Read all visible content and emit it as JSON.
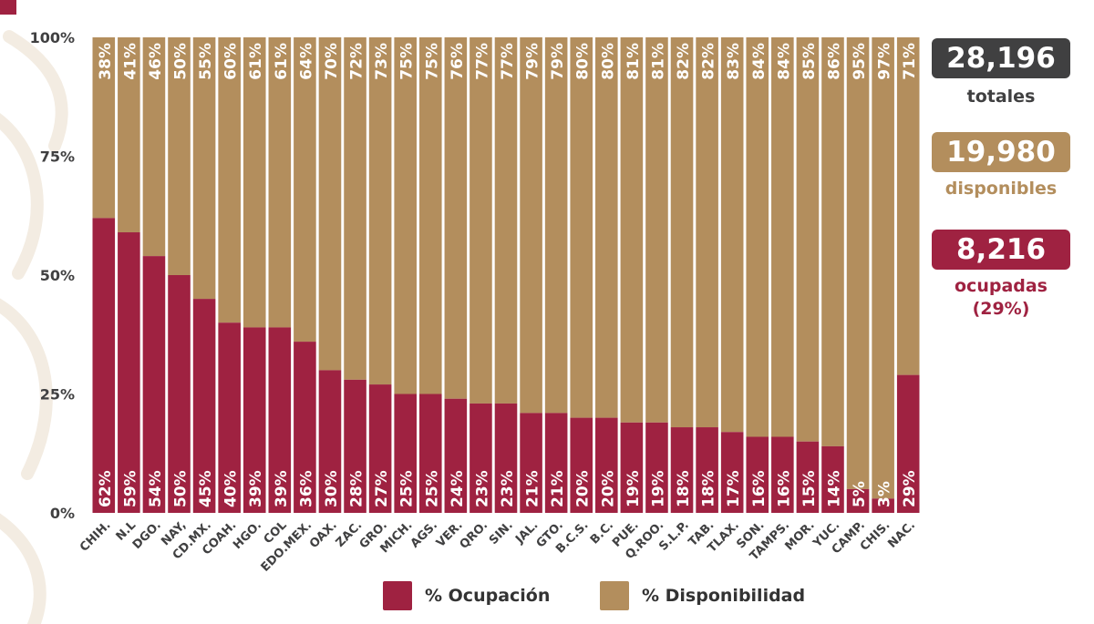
{
  "chart_data": {
    "type": "bar",
    "stacked": true,
    "orientation": "vertical",
    "categories": [
      "CHIH.",
      "N.L",
      "DGO.",
      "NAY,",
      "CD.MX.",
      "COAH.",
      "HGO.",
      "COL",
      "EDO.MEX.",
      "OAX.",
      "ZAC.",
      "GRO.",
      "MICH.",
      "AGS.",
      "VER.",
      "QRO.",
      "SIN.",
      "JAL.",
      "GTO.",
      "B.C.S.",
      "B.C.",
      "PUE.",
      "Q.ROO.",
      "S.L.P.",
      "TAB.",
      "TLAX.",
      "SON.",
      "TAMPS.",
      "MOR.",
      "YUC.",
      "CAMP.",
      "CHIS.",
      "NAC."
    ],
    "series": [
      {
        "name": "% Ocupación",
        "color": "#9f2241",
        "values": [
          62,
          59,
          54,
          50,
          45,
          40,
          39,
          39,
          36,
          30,
          28,
          27,
          25,
          25,
          24,
          23,
          23,
          21,
          21,
          20,
          20,
          19,
          19,
          18,
          18,
          17,
          16,
          16,
          15,
          14,
          5,
          3,
          29
        ],
        "labels": [
          "62%",
          "59%",
          "54%",
          "50%",
          "45%",
          "40%",
          "39%",
          "39%",
          "36%",
          "30%",
          "28%",
          "27%",
          "25%",
          "25%",
          "24%",
          "23%",
          "23%",
          "21%",
          "21%",
          "20%",
          "20%",
          "19%",
          "19%",
          "18%",
          "18%",
          "17%",
          "16%",
          "16%",
          "15%",
          "14%",
          "5%",
          "3%",
          "29%"
        ]
      },
      {
        "name": "% Disponibilidad",
        "color": "#b38e5d",
        "values": [
          38,
          41,
          46,
          50,
          55,
          60,
          61,
          61,
          64,
          70,
          72,
          73,
          75,
          75,
          76,
          77,
          77,
          79,
          79,
          80,
          80,
          81,
          81,
          82,
          82,
          83,
          84,
          84,
          85,
          86,
          95,
          97,
          71
        ],
        "labels": [
          "38%",
          "41%",
          "46%",
          "50%",
          "55%",
          "60%",
          "61%",
          "61%",
          "64%",
          "70%",
          "72%",
          "73%",
          "75%",
          "75%",
          "76%",
          "77%",
          "77%",
          "79%",
          "79%",
          "80%",
          "80%",
          "81%",
          "81%",
          "82%",
          "82%",
          "83%",
          "84%",
          "84%",
          "85%",
          "86%",
          "95%",
          "97%",
          "71%"
        ]
      }
    ],
    "ylim": [
      0,
      100
    ],
    "yticks": [
      "0%",
      "25%",
      "50%",
      "75%",
      "100%"
    ],
    "grid": false,
    "legend_position": "bottom"
  },
  "summary": {
    "totales": {
      "value": "28,196",
      "label": "totales"
    },
    "disponibles": {
      "value": "19,980",
      "label": "disponibles"
    },
    "ocupadas": {
      "value": "8,216",
      "label": "ocupadas",
      "percent": "(29%)"
    }
  },
  "legend": {
    "ocupacion": "% Ocupación",
    "disponibilidad": "% Disponibilidad"
  },
  "colors": {
    "ocupacion": "#9f2241",
    "disponibilidad": "#b38e5d",
    "totales_box": "#404041",
    "background": "#ffffff"
  }
}
